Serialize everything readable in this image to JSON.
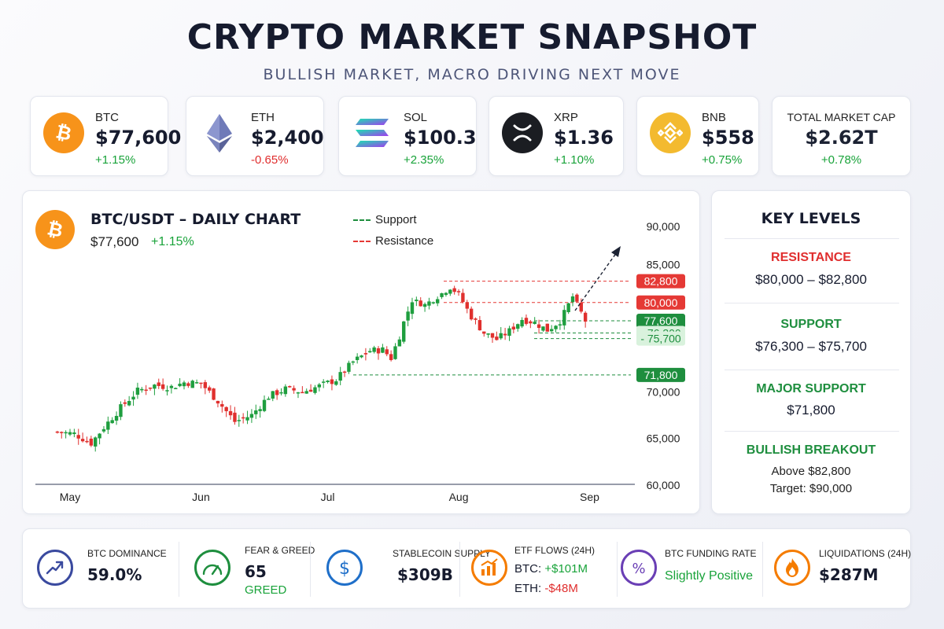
{
  "title": "CRYPTO MARKET SNAPSHOT",
  "subtitle": "BULLISH MARKET, MACRO DRIVING NEXT MOVE",
  "tickers": [
    {
      "symbol": "BTC",
      "price": "$77,600",
      "change": "+1.15%",
      "icon": "bitcoin-icon"
    },
    {
      "symbol": "ETH",
      "price": "$2,400",
      "change": "-0.65%",
      "icon": "ethereum-icon"
    },
    {
      "symbol": "SOL",
      "price": "$100.3",
      "change": "+2.35%",
      "icon": "solana-icon"
    },
    {
      "symbol": "XRP",
      "price": "$1.36",
      "change": "+1.10%",
      "icon": "xrp-icon"
    },
    {
      "symbol": "BNB",
      "price": "$558",
      "change": "+0.75%",
      "icon": "bnb-icon"
    }
  ],
  "market_cap": {
    "label": "TOTAL MARKET CAP",
    "value": "$2.62T",
    "change": "+0.78%"
  },
  "chart_header": {
    "pair": "BTC/USDT – DAILY CHART",
    "price": "$77,600",
    "change": "+1.15%"
  },
  "legend": {
    "support": "Support",
    "resistance": "Resistance"
  },
  "key_levels": {
    "title": "KEY LEVELS",
    "resistance_label": "RESISTANCE",
    "resistance_value": "$80,000 – $82,800",
    "support_label": "SUPPORT",
    "support_value": "$76,300 – $75,700",
    "major_label": "MAJOR SUPPORT",
    "major_value": "$71,800",
    "breakout_label": "BULLISH BREAKOUT",
    "breakout_above": "Above $82,800",
    "breakout_target": "Target: $90,000"
  },
  "metrics": {
    "dominance": {
      "label": "BTC DOMINANCE",
      "value": "59.0%"
    },
    "fear_greed": {
      "label": "FEAR & GREED",
      "value": "65",
      "sub": "GREED"
    },
    "stablecoin": {
      "label": "STABLECOIN SUPPLY",
      "value": "$309B"
    },
    "etf": {
      "label": "ETF FLOWS (24H)",
      "btc_prefix": "BTC: ",
      "btc_value": "+$101M",
      "eth_prefix": "ETH: ",
      "eth_value": "-$48M"
    },
    "funding": {
      "label": "BTC FUNDING RATE",
      "value": "Slightly Positive"
    },
    "liquidations": {
      "label": "LIQUIDATIONS (24H)",
      "value": "$287M"
    }
  },
  "colors": {
    "up": "#19a33a",
    "down": "#e02e2e",
    "btc": "#f7931a",
    "support": "#1e8e3e",
    "resistance": "#e53935"
  },
  "chart_data": {
    "type": "candlestick",
    "title": "BTC/USDT – DAILY CHART",
    "x_tick_labels": [
      "May",
      "Jun",
      "Jul",
      "Aug",
      "Sep"
    ],
    "y_tick_labels": [
      "90,000",
      "85,000",
      "70,000",
      "65,000",
      "60,000"
    ],
    "y_ticks": [
      90000,
      85000,
      70000,
      65000,
      60000
    ],
    "ylim": [
      60000,
      90000
    ],
    "xlim": [
      "2025-05-01",
      "2025-09-08"
    ],
    "x_ticks": [
      "2025-05-01",
      "2025-06-01",
      "2025-07-01",
      "2025-08-01",
      "2025-09-01"
    ],
    "path_dates": [
      "2025-04-28",
      "2025-05-02",
      "2025-05-06",
      "2025-05-09",
      "2025-05-13",
      "2025-05-17",
      "2025-05-21",
      "2025-05-25",
      "2025-05-28",
      "2025-06-01",
      "2025-06-05",
      "2025-06-09",
      "2025-06-13",
      "2025-06-17",
      "2025-06-21",
      "2025-06-25",
      "2025-06-29",
      "2025-07-03",
      "2025-07-07",
      "2025-07-11",
      "2025-07-14",
      "2025-07-16",
      "2025-07-18",
      "2025-07-21",
      "2025-07-24",
      "2025-07-27",
      "2025-07-30",
      "2025-08-01",
      "2025-08-04",
      "2025-08-07",
      "2025-08-10",
      "2025-08-13",
      "2025-08-16",
      "2025-08-19",
      "2025-08-22",
      "2025-08-25",
      "2025-08-28",
      "2025-08-31"
    ],
    "path_closes": [
      65700,
      65500,
      64500,
      66200,
      68300,
      70100,
      70700,
      70500,
      71000,
      70900,
      69000,
      66800,
      67500,
      69500,
      70300,
      70000,
      70600,
      71300,
      73200,
      74400,
      74500,
      73600,
      76000,
      80300,
      79700,
      80800,
      82000,
      81100,
      78100,
      76300,
      75600,
      76500,
      77800,
      77400,
      76600,
      77600,
      80800,
      77600
    ],
    "levels": [
      {
        "label": "82,800",
        "value": 82800,
        "kind": "resistance"
      },
      {
        "label": "80,000",
        "value": 80000,
        "kind": "resistance"
      },
      {
        "label": "77,600",
        "value": 77600,
        "kind": "price"
      },
      {
        "label": "76,300",
        "value": 76300,
        "kind": "support"
      },
      {
        "label": "75,700",
        "value": 75700,
        "kind": "support"
      },
      {
        "label": "71,800",
        "value": 71800,
        "kind": "support"
      }
    ]
  }
}
